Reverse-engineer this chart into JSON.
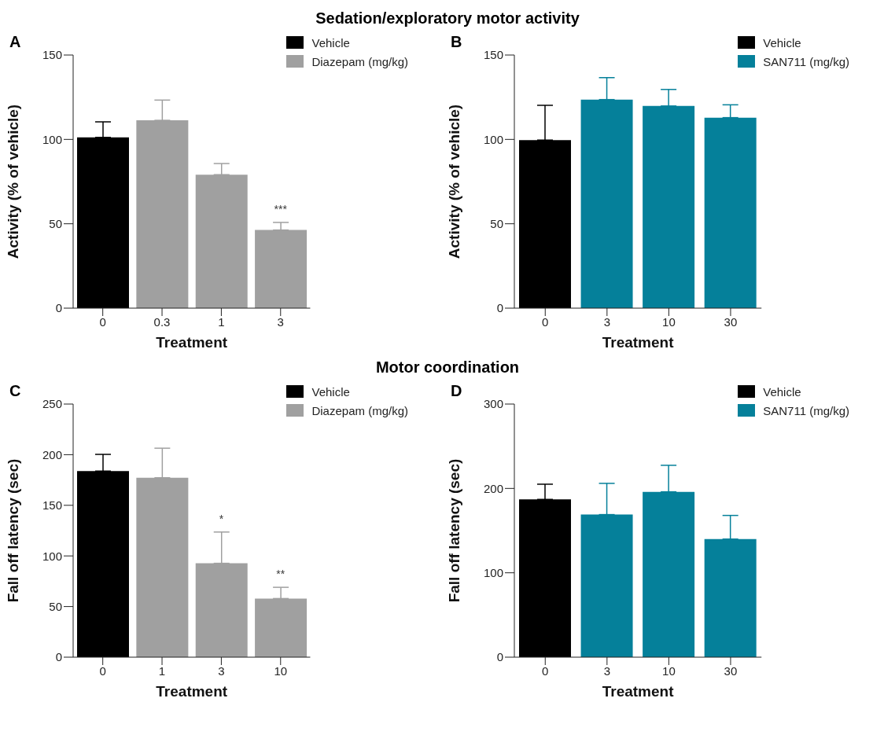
{
  "chart_data": [
    {
      "type": "bar",
      "title": "A",
      "annotations": [
        "Sedation/exploratory motor activity",
        {
          "text": "***",
          "x": "3",
          "y": 50.8
        }
      ],
      "categories": [
        "0",
        "0.3",
        "1",
        "3"
      ],
      "xlabel": "Treatment",
      "ylabel": "Activity (% of vehicle)",
      "ylim": [
        0,
        150
      ],
      "yticks": [
        0,
        50,
        100,
        150
      ],
      "legend": "top right",
      "series": [
        {
          "name": "Vehicle",
          "color": "#000000",
          "values": [
            101.2,
            null,
            null,
            null
          ],
          "errors": [
            [
              101.2,
              110.4
            ],
            null,
            null,
            null
          ]
        },
        {
          "name": "Diazepam (mg/kg)",
          "color": "#a0a0a0",
          "values": [
            null,
            111.3,
            79.1,
            46.3
          ],
          "errors": [
            null,
            [
              111.3,
              123.3
            ],
            [
              79.1,
              85.7
            ],
            [
              46.3,
              50.8
            ]
          ]
        }
      ]
    },
    {
      "type": "bar",
      "title": "B",
      "categories": [
        "0",
        "3",
        "10",
        "30"
      ],
      "xlabel": "Treatment",
      "ylabel": "Activity (% of vehicle)",
      "ylim": [
        0,
        150
      ],
      "yticks": [
        0,
        50,
        100,
        150
      ],
      "legend": "top right",
      "series": [
        {
          "name": "Vehicle",
          "color": "#000000",
          "values": [
            99.6,
            null,
            null,
            null
          ],
          "errors": [
            [
              99.6,
              120.2
            ],
            null,
            null,
            null
          ]
        },
        {
          "name": "SAN711 (mg/kg)",
          "color": "#05809a",
          "values": [
            null,
            123.6,
            119.8,
            112.9
          ],
          "errors": [
            null,
            [
              123.6,
              136.6
            ],
            [
              119.8,
              129.6
            ],
            [
              112.9,
              120.5
            ]
          ]
        }
      ]
    },
    {
      "type": "bar",
      "title": "C",
      "annotations": [
        "Motor coordination",
        {
          "text": "*",
          "x": "3",
          "y": 123.6
        },
        {
          "text": "**",
          "x": "10",
          "y": 69
        }
      ],
      "categories": [
        "0",
        "1",
        "3",
        "10"
      ],
      "xlabel": "Treatment",
      "ylabel": "Fall off latency (sec)",
      "ylim": [
        0,
        250
      ],
      "yticks": [
        0,
        50,
        100,
        150,
        200,
        250
      ],
      "legend": "top right",
      "series": [
        {
          "name": "Vehicle",
          "color": "#000000",
          "values": [
            183.8,
            null,
            null,
            null
          ],
          "errors": [
            [
              183.8,
              200.3
            ],
            null,
            null,
            null
          ]
        },
        {
          "name": "Diazepam (mg/kg)",
          "color": "#a0a0a0",
          "values": [
            null,
            177.2,
            92.7,
            57.9
          ],
          "errors": [
            null,
            [
              177.2,
              206.4
            ],
            [
              92.7,
              123.6
            ],
            [
              57.9,
              69
            ]
          ]
        }
      ]
    },
    {
      "type": "bar",
      "title": "D",
      "categories": [
        "0",
        "3",
        "10",
        "30"
      ],
      "xlabel": "Treatment",
      "ylabel": "Fall off latency (sec)",
      "ylim": [
        0,
        300
      ],
      "yticks": [
        0,
        100,
        200,
        300
      ],
      "legend": "top right",
      "series": [
        {
          "name": "Vehicle",
          "color": "#000000",
          "values": [
            187,
            null,
            null,
            null
          ],
          "errors": [
            [
              187,
              205
            ],
            null,
            null,
            null
          ]
        },
        {
          "name": "SAN711 (mg/kg)",
          "color": "#05809a",
          "values": [
            null,
            169,
            196,
            140
          ],
          "errors": [
            null,
            [
              169,
              206
            ],
            [
              196,
              227.4
            ],
            [
              140,
              168
            ]
          ]
        }
      ]
    }
  ]
}
